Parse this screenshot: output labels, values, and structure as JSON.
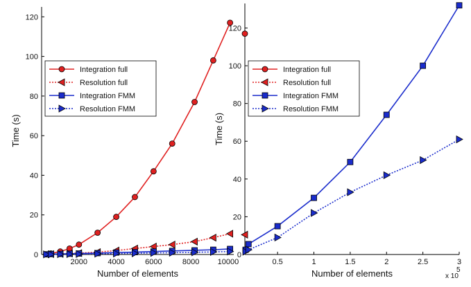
{
  "chart_data": [
    {
      "type": "line",
      "xlabel": "Number of elements",
      "ylabel": "Time (s)",
      "xlim": [
        0,
        10300
      ],
      "ylim": [
        0,
        125
      ],
      "xticks": [
        2000,
        4000,
        6000,
        8000,
        10000
      ],
      "xtick_labels": [
        "2000",
        "4000",
        "6000",
        "8000",
        "10000"
      ],
      "yticks": [
        0,
        20,
        40,
        60,
        80,
        100,
        120
      ],
      "ytick_labels": [
        "0",
        "20",
        "40",
        "60",
        "80",
        "100",
        "120"
      ],
      "legend_position": "center-left",
      "series": [
        {
          "name": "Integration full",
          "color": "#e02020",
          "line": "solid",
          "marker": "circle",
          "x": [
            250,
            500,
            1000,
            1500,
            2000,
            3000,
            4000,
            5000,
            6000,
            7000,
            8200,
            9200,
            10100
          ],
          "y": [
            0.1,
            0.5,
            1.5,
            3,
            5,
            11,
            19,
            29,
            42,
            56,
            77,
            98,
            117
          ]
        },
        {
          "name": "Resolution full",
          "color": "#e02020",
          "line": "dotted",
          "marker": "triangle-left",
          "x": [
            250,
            500,
            1000,
            1500,
            2000,
            3000,
            4000,
            5000,
            6000,
            7000,
            8200,
            9200,
            10100
          ],
          "y": [
            0.1,
            0.2,
            0.3,
            0.5,
            0.7,
            1.2,
            2,
            3,
            4,
            5,
            6.5,
            8.5,
            10.5
          ]
        },
        {
          "name": "Integration FMM",
          "color": "#1a2ccc",
          "line": "solid",
          "marker": "square",
          "x": [
            250,
            500,
            1000,
            1500,
            2000,
            3000,
            4000,
            5000,
            6000,
            7000,
            8200,
            9200,
            10100
          ],
          "y": [
            0.1,
            0.2,
            0.3,
            0.4,
            0.5,
            0.7,
            1,
            1.2,
            1.5,
            1.8,
            2.1,
            2.4,
            2.8
          ]
        },
        {
          "name": "Resolution FMM",
          "color": "#1a2ccc",
          "line": "dotted",
          "marker": "triangle-right",
          "x": [
            250,
            500,
            1000,
            1500,
            2000,
            3000,
            4000,
            5000,
            6000,
            7000,
            8200,
            9200,
            10100
          ],
          "y": [
            0.05,
            0.1,
            0.15,
            0.2,
            0.25,
            0.4,
            0.5,
            0.6,
            0.8,
            0.9,
            1.1,
            1.3,
            1.5
          ]
        }
      ]
    },
    {
      "type": "line",
      "xlabel": "Number of elements",
      "ylabel": "Time (s)",
      "x_scale_note": "x 10",
      "x_scale_exponent": "5",
      "xlim": [
        0.05,
        3
      ],
      "ylim": [
        0,
        133
      ],
      "xticks": [
        0.5,
        1,
        1.5,
        2,
        2.5,
        3
      ],
      "xtick_labels": [
        "0.5",
        "1",
        "1.5",
        "2",
        "2.5",
        "3"
      ],
      "yticks": [
        0,
        20,
        40,
        60,
        80,
        100,
        120
      ],
      "ytick_labels": [
        "0",
        "20",
        "40",
        "60",
        "80",
        "100",
        "120"
      ],
      "legend_position": "top-left",
      "series": [
        {
          "name": "Integration full",
          "color": "#e02020",
          "line": "solid",
          "marker": "circle",
          "x": [
            0.05
          ],
          "y": [
            117
          ]
        },
        {
          "name": "Resolution full",
          "color": "#e02020",
          "line": "dotted",
          "marker": "triangle-left",
          "x": [
            0.05
          ],
          "y": [
            10.5
          ]
        },
        {
          "name": "Integration FMM",
          "color": "#1a2ccc",
          "line": "solid",
          "marker": "square",
          "x": [
            0.06,
            0.1,
            0.5,
            1,
            1.5,
            2,
            2.5,
            3
          ],
          "y": [
            2.5,
            5.5,
            15,
            30,
            49,
            74,
            100,
            132
          ]
        },
        {
          "name": "Resolution FMM",
          "color": "#1a2ccc",
          "line": "dotted",
          "marker": "triangle-right",
          "x": [
            0.06,
            0.1,
            0.5,
            1,
            1.5,
            2,
            2.5,
            3
          ],
          "y": [
            1.5,
            2.5,
            9,
            22,
            33,
            42,
            50,
            61
          ]
        }
      ]
    }
  ]
}
